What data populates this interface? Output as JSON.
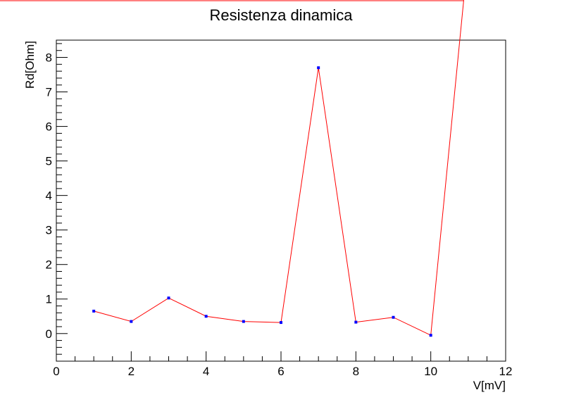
{
  "chart_data": {
    "type": "line",
    "title": "Resistenza dinamica",
    "xlabel": "V[mV]",
    "ylabel": "Rd[Ohm]",
    "xlim": [
      0,
      12
    ],
    "ylim": [
      -0.8,
      8.5
    ],
    "x_ticks": [
      "0",
      "2",
      "4",
      "6",
      "8",
      "10",
      "12"
    ],
    "y_ticks": [
      "0",
      "1",
      "2",
      "3",
      "4",
      "5",
      "6",
      "7",
      "8"
    ],
    "grid": false,
    "series": [
      {
        "x": [
          1,
          2,
          3,
          4,
          5,
          6,
          7,
          8,
          9,
          10
        ],
        "y": [
          0.65,
          0.35,
          1.03,
          0.5,
          0.35,
          0.32,
          7.7,
          0.33,
          0.47,
          -0.05
        ],
        "marker_color": "#0000ff",
        "line_color": "#ff0000"
      }
    ],
    "fit_curve": {
      "color": "#ff0000",
      "end_point": {
        "x": 10.88,
        "y": 9.8
      }
    }
  }
}
